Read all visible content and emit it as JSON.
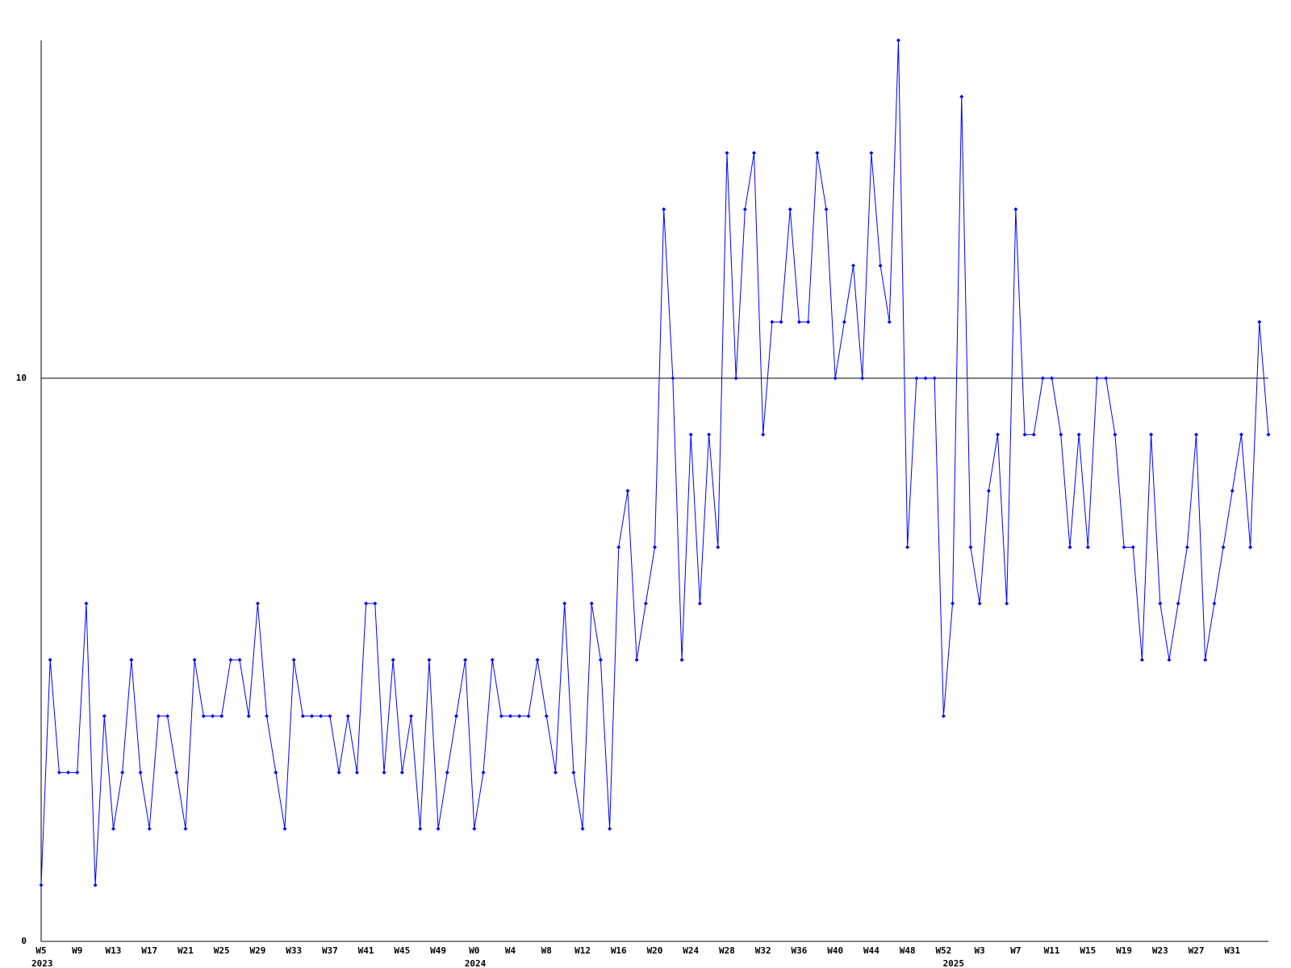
{
  "chart_data": {
    "type": "line",
    "categories": [
      "W5",
      null,
      null,
      null,
      "W9",
      null,
      null,
      null,
      "W13",
      null,
      null,
      null,
      "W17",
      null,
      null,
      null,
      "W21",
      null,
      null,
      null,
      "W25",
      null,
      null,
      null,
      "W29",
      null,
      null,
      null,
      "W33",
      null,
      null,
      null,
      "W37",
      null,
      null,
      null,
      "W41",
      null,
      null,
      null,
      "W45",
      null,
      null,
      null,
      "W49",
      null,
      null,
      null,
      "W0",
      null,
      null,
      null,
      "W4",
      null,
      null,
      null,
      "W8",
      null,
      null,
      null,
      "W12",
      null,
      null,
      null,
      "W16",
      null,
      null,
      null,
      "W20",
      null,
      null,
      null,
      "W24",
      null,
      null,
      null,
      "W28",
      null,
      null,
      null,
      "W32",
      null,
      null,
      null,
      "W36",
      null,
      null,
      null,
      "W40",
      null,
      null,
      null,
      "W44",
      null,
      null,
      null,
      "W48",
      null,
      null,
      null,
      "W52",
      null,
      null,
      null,
      "W3",
      null,
      null,
      null,
      "W7",
      null,
      null,
      null,
      "W11",
      null,
      null,
      null,
      "W15",
      null,
      null,
      null,
      "W19",
      null,
      null,
      null,
      "W23",
      null,
      null,
      null,
      "W27",
      null,
      null,
      null,
      "W31",
      null,
      null,
      null,
      null
    ],
    "years": [
      "2023",
      null,
      null,
      null,
      null,
      null,
      null,
      null,
      null,
      null,
      null,
      null,
      null,
      null,
      null,
      null,
      null,
      null,
      null,
      null,
      null,
      null,
      null,
      null,
      null,
      null,
      null,
      null,
      null,
      null,
      null,
      null,
      null,
      null,
      null,
      null,
      null,
      null,
      null,
      null,
      null,
      null,
      null,
      null,
      null,
      null,
      null,
      null,
      "2024",
      null,
      null,
      null,
      null,
      null,
      null,
      null,
      null,
      null,
      null,
      null,
      null,
      null,
      null,
      null,
      null,
      null,
      null,
      null,
      null,
      null,
      null,
      null,
      null,
      null,
      null,
      null,
      null,
      null,
      null,
      null,
      null,
      null,
      null,
      null,
      null,
      null,
      null,
      null,
      null,
      null,
      null,
      null,
      null,
      null,
      null,
      null,
      null,
      null,
      null,
      null,
      null,
      "2025",
      null,
      null,
      null,
      null,
      null,
      null,
      null,
      null,
      null,
      null,
      null,
      null,
      null,
      null,
      null,
      null,
      null,
      null,
      null,
      null,
      null,
      null,
      null,
      null,
      null,
      null,
      null,
      null,
      null,
      null,
      null,
      null,
      null,
      null
    ],
    "series": [
      {
        "color": "#0000ff",
        "values": [
          1,
          5,
          3,
          3,
          3,
          6,
          1,
          4,
          2,
          3,
          5,
          3,
          2,
          4,
          4,
          3,
          2,
          5,
          4,
          4,
          4,
          5,
          5,
          4,
          6,
          4,
          3,
          2,
          5,
          4,
          4,
          4,
          4,
          3,
          4,
          3,
          6,
          6,
          3,
          5,
          3,
          4,
          2,
          5,
          2,
          3,
          4,
          5,
          2,
          3,
          5,
          4,
          4,
          4,
          4,
          5,
          4,
          3,
          6,
          3,
          2,
          6,
          5,
          2,
          7,
          8,
          5,
          6,
          7,
          13,
          10,
          5,
          9,
          6,
          9,
          7,
          14,
          10,
          13,
          14,
          9,
          11,
          11,
          13,
          11,
          11,
          14,
          13,
          10,
          11,
          12,
          10,
          14,
          12,
          11,
          16,
          7,
          10,
          10,
          10,
          4,
          6,
          15,
          7,
          6,
          8,
          9,
          6,
          13,
          9,
          9,
          10,
          10,
          9,
          7,
          9,
          7,
          10,
          10,
          9,
          7,
          7,
          5,
          9,
          6,
          5,
          6,
          7,
          9,
          5,
          6,
          7,
          8,
          9,
          7,
          11,
          9
        ]
      }
    ],
    "ylim": [
      0,
      16
    ],
    "yticks": [
      0,
      10
    ],
    "grid": true
  }
}
